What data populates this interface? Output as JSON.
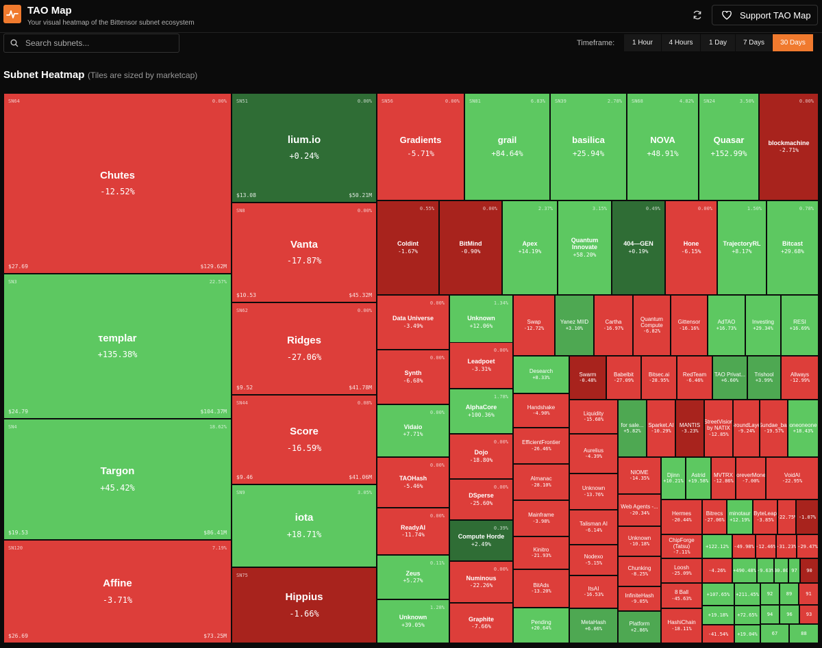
{
  "header": {
    "title": "TAO Map",
    "subtitle": "Your visual heatmap of the Bittensor subnet ecosystem",
    "support_label": "Support TAO Map"
  },
  "search": {
    "placeholder": "Search subnets...",
    "value": ""
  },
  "timeframe": {
    "label": "Timeframe:",
    "options": [
      "1 Hour",
      "4 Hours",
      "1 Day",
      "7 Days",
      "30 Days"
    ],
    "selected": "30 Days"
  },
  "section": {
    "title": "Subnet Heatmap",
    "note": "(Tiles are sized by marketcap)"
  },
  "colors": {
    "accent": "#f07a2e",
    "strong_red": "#dd3e3a",
    "dark_red": "#a8231d",
    "green": "#5dc861",
    "dark_green": "#2f6d35"
  },
  "tiles": [
    {
      "name": "Chutes",
      "change": "-12.52%",
      "sn": "SN64",
      "delta": "0.00%",
      "price": "$27.69",
      "mcap": "$129.62M"
    },
    {
      "name": "τemplar",
      "change": "+135.38%",
      "sn": "SN3",
      "delta": "22.57%",
      "price": "$24.79",
      "mcap": "$104.37M"
    },
    {
      "name": "Targon",
      "change": "+45.42%",
      "sn": "SN4",
      "delta": "18.62%",
      "price": "$19.53",
      "mcap": "$86.41M"
    },
    {
      "name": "Affine",
      "change": "-3.71%",
      "sn": "SN120",
      "delta": "7.19%",
      "price": "$26.69",
      "mcap": "$73.25M"
    },
    {
      "name": "lium.io",
      "change": "+0.24%",
      "sn": "SN51",
      "delta": "0.00%",
      "price": "$13.08",
      "mcap": "$50.21M"
    },
    {
      "name": "Vanta",
      "change": "-17.87%",
      "sn": "SN8",
      "delta": "0.00%",
      "price": "$10.53",
      "mcap": "$45.32M"
    },
    {
      "name": "Ridges",
      "change": "-27.06%",
      "sn": "SN62",
      "delta": "0.00%",
      "price": "$9.52",
      "mcap": "$41.78M"
    },
    {
      "name": "Score",
      "change": "-16.59%",
      "sn": "SN44",
      "delta": "0.08%",
      "price": "$9.46",
      "mcap": "$41.06M"
    },
    {
      "name": "iota",
      "change": "+18.71%",
      "sn": "SN9",
      "delta": "3.05%"
    },
    {
      "name": "Hippius",
      "change": "-1.66%",
      "sn": "SN75"
    },
    {
      "name": "Gradients",
      "change": "-5.71%",
      "sn": "SN56",
      "delta": "0.00%"
    },
    {
      "name": "grail",
      "change": "+84.64%",
      "sn": "SN81",
      "delta": "6.83%"
    },
    {
      "name": "basilica",
      "change": "+25.94%",
      "sn": "SN39",
      "delta": "2.78%"
    },
    {
      "name": "NOVA",
      "change": "+48.91%",
      "sn": "SN68",
      "delta": "4.82%"
    },
    {
      "name": "Quasar",
      "change": "+152.99%",
      "sn": "SN24",
      "delta": "3.50%"
    },
    {
      "name": "blockmachine",
      "change": "-2.71%",
      "delta": "0.00%"
    },
    {
      "name": "Coldint",
      "change": "-1.67%",
      "delta": "0.55%"
    },
    {
      "name": "BitMind",
      "change": "-0.90%",
      "delta": "0.00%"
    },
    {
      "name": "Apex",
      "change": "+14.19%",
      "delta": "2.37%"
    },
    {
      "name": "Quantum Innovate",
      "change": "+58.20%",
      "delta": "3.15%"
    },
    {
      "name": "404—GEN",
      "change": "+0.19%",
      "delta": "0.49%"
    },
    {
      "name": "Hone",
      "change": "-6.15%",
      "delta": "0.00%"
    },
    {
      "name": "TrajectoryRL",
      "change": "+8.17%",
      "delta": "1.50%"
    },
    {
      "name": "Bitcast",
      "change": "+29.68%",
      "delta": "0.78%"
    },
    {
      "name": "Data Universe",
      "change": "-3.49%",
      "delta": "0.00%"
    },
    {
      "name": "Unknown",
      "change": "+12.06%",
      "delta": "1.34%"
    },
    {
      "name": "Swap",
      "change": "-12.72%"
    },
    {
      "name": "Yanez MIID",
      "change": "+3.10%"
    },
    {
      "name": "Cartha",
      "change": "-16.97%"
    },
    {
      "name": "Quantum Compute",
      "change": "-6.82%"
    },
    {
      "name": "Gittensor",
      "change": "-16.16%"
    },
    {
      "name": "AdTAO",
      "change": "+16.73%"
    },
    {
      "name": "Investing",
      "change": "+29.34%"
    },
    {
      "name": "RESI",
      "change": "+16.69%"
    },
    {
      "name": "Synth",
      "change": "-6.68%",
      "delta": "0.00%"
    },
    {
      "name": "Leadpoet",
      "change": "-3.31%",
      "delta": "0.00%"
    },
    {
      "name": "Desearch",
      "change": "+8.33%"
    },
    {
      "name": "Swarm",
      "change": "-0.48%"
    },
    {
      "name": "Babelbit",
      "change": "-27.09%"
    },
    {
      "name": "Bitsec.ai",
      "change": "-28.95%"
    },
    {
      "name": "RedTeam",
      "change": "-6.46%"
    },
    {
      "name": "TAO Privat...",
      "change": "+6.60%"
    },
    {
      "name": "Trishool",
      "change": "+3.99%"
    },
    {
      "name": "Allways",
      "change": "-12.99%"
    },
    {
      "name": "Vidaio",
      "change": "+7.71%",
      "delta": "0.00%"
    },
    {
      "name": "AlphaCore",
      "change": "+100.36%",
      "delta": "1.78%"
    },
    {
      "name": "Handshake",
      "change": "-4.90%"
    },
    {
      "name": "Liquidity",
      "change": "-15.68%"
    },
    {
      "name": "for sale...",
      "change": "+5.82%"
    },
    {
      "name": "Sparket.AI",
      "change": "-10.29%"
    },
    {
      "name": "MANTIS",
      "change": "-3.23%"
    },
    {
      "name": "StreetVision by NATIX",
      "change": "-12.85%"
    },
    {
      "name": "GroundLayer",
      "change": "-9.24%"
    },
    {
      "name": "Sundae_bar",
      "change": "-19.57%"
    },
    {
      "name": "oneoneone",
      "change": "+18.43%"
    },
    {
      "name": "EfficientFrontier",
      "change": "-26.46%"
    },
    {
      "name": "Aurelius",
      "change": "-4.39%"
    },
    {
      "name": "Dojo",
      "change": "-18.80%",
      "delta": "0.00%"
    },
    {
      "name": "TAOHash",
      "change": "-5.46%",
      "delta": "0.00%"
    },
    {
      "name": "Almanac",
      "change": "-28.10%"
    },
    {
      "name": "Unknown",
      "change": "-13.76%"
    },
    {
      "name": "NIOME",
      "change": "-14.35%"
    },
    {
      "name": "Djinn",
      "change": "+10.21%"
    },
    {
      "name": "Astrid",
      "change": "+19.58%"
    },
    {
      "name": "MVTRX",
      "change": "-12.86%"
    },
    {
      "name": "ForeverMoney",
      "change": "-7.00%"
    },
    {
      "name": "VoidAI",
      "change": "-22.95%"
    },
    {
      "name": "DSperse",
      "change": "-25.60%",
      "delta": "0.00%"
    },
    {
      "name": "Web Agents -...",
      "change": "-20.34%"
    },
    {
      "name": "Mainframe",
      "change": "-3.98%"
    },
    {
      "name": "Talisman AI",
      "change": "-6.14%"
    },
    {
      "name": "Hermes",
      "change": "-20.44%"
    },
    {
      "name": "Bitrecs",
      "change": "-27.06%"
    },
    {
      "name": "minotaur",
      "change": "+12.19%"
    },
    {
      "name": "ByteLeap",
      "change": "-3.85%"
    },
    {
      "name": "",
      "change": "-22.75%"
    },
    {
      "name": "",
      "change": "-1.07%"
    },
    {
      "name": "ReadyAI",
      "change": "-11.74%",
      "delta": "0.00%"
    },
    {
      "name": "Compute Horde",
      "change": "+2.49%",
      "delta": "0.39%"
    },
    {
      "name": "Unknown",
      "change": "-10.18%"
    },
    {
      "name": "ChipForge (Tatsu)",
      "change": "-7.11%"
    },
    {
      "name": "",
      "change": "+122.12%"
    },
    {
      "name": "",
      "change": "-49.98%"
    },
    {
      "name": "",
      "change": "-12.46%"
    },
    {
      "name": "",
      "change": "-31.23%"
    },
    {
      "name": "",
      "change": "-29.47%"
    },
    {
      "name": "Kinitro",
      "change": "-21.93%"
    },
    {
      "name": "Nodexo",
      "change": "-5.15%"
    },
    {
      "name": "Chunking",
      "change": "-8.25%"
    },
    {
      "name": "Loosh",
      "change": "-25.09%"
    },
    {
      "name": "",
      "change": "-4.26%"
    },
    {
      "name": "",
      "change": "+490.48%"
    },
    {
      "name": "",
      "change": "-9.63%"
    },
    {
      "name": "",
      "change": "+30.80%"
    },
    {
      "name": "",
      "change": "97"
    },
    {
      "name": "",
      "change": "90"
    },
    {
      "name": "Zeus",
      "change": "+5.27%",
      "delta": "0.11%"
    },
    {
      "name": "Numinous",
      "change": "-22.26%",
      "delta": "0.00%"
    },
    {
      "name": "BitAds",
      "change": "-13.20%"
    },
    {
      "name": "ItsAI",
      "change": "-16.53%"
    },
    {
      "name": "InfiniteHash",
      "change": "-9.05%"
    },
    {
      "name": "8 Ball",
      "change": "-45.63%"
    },
    {
      "name": "",
      "change": "+107.65%"
    },
    {
      "name": "",
      "change": "+211.45%"
    },
    {
      "name": "",
      "change": "92"
    },
    {
      "name": "",
      "change": "89"
    },
    {
      "name": "",
      "change": "91"
    },
    {
      "name": "Unknown",
      "change": "+39.05%",
      "delta": "1.28%"
    },
    {
      "name": "Graphite",
      "change": "-7.66%"
    },
    {
      "name": "Pending",
      "change": "+20.64%"
    },
    {
      "name": "MetaHash",
      "change": "+6.06%"
    },
    {
      "name": "Platform",
      "change": "+2.86%"
    },
    {
      "name": "HashiChain",
      "change": "-18.11%"
    },
    {
      "name": "",
      "change": "+19.18%"
    },
    {
      "name": "",
      "change": "+72.65%"
    },
    {
      "name": "",
      "change": "94"
    },
    {
      "name": "",
      "change": "-41.54%"
    },
    {
      "name": "",
      "change": "+19.04%"
    },
    {
      "name": "",
      "change": "96"
    },
    {
      "name": "",
      "change": "93"
    },
    {
      "name": "",
      "change": "67"
    },
    {
      "name": "",
      "change": "88"
    }
  ]
}
